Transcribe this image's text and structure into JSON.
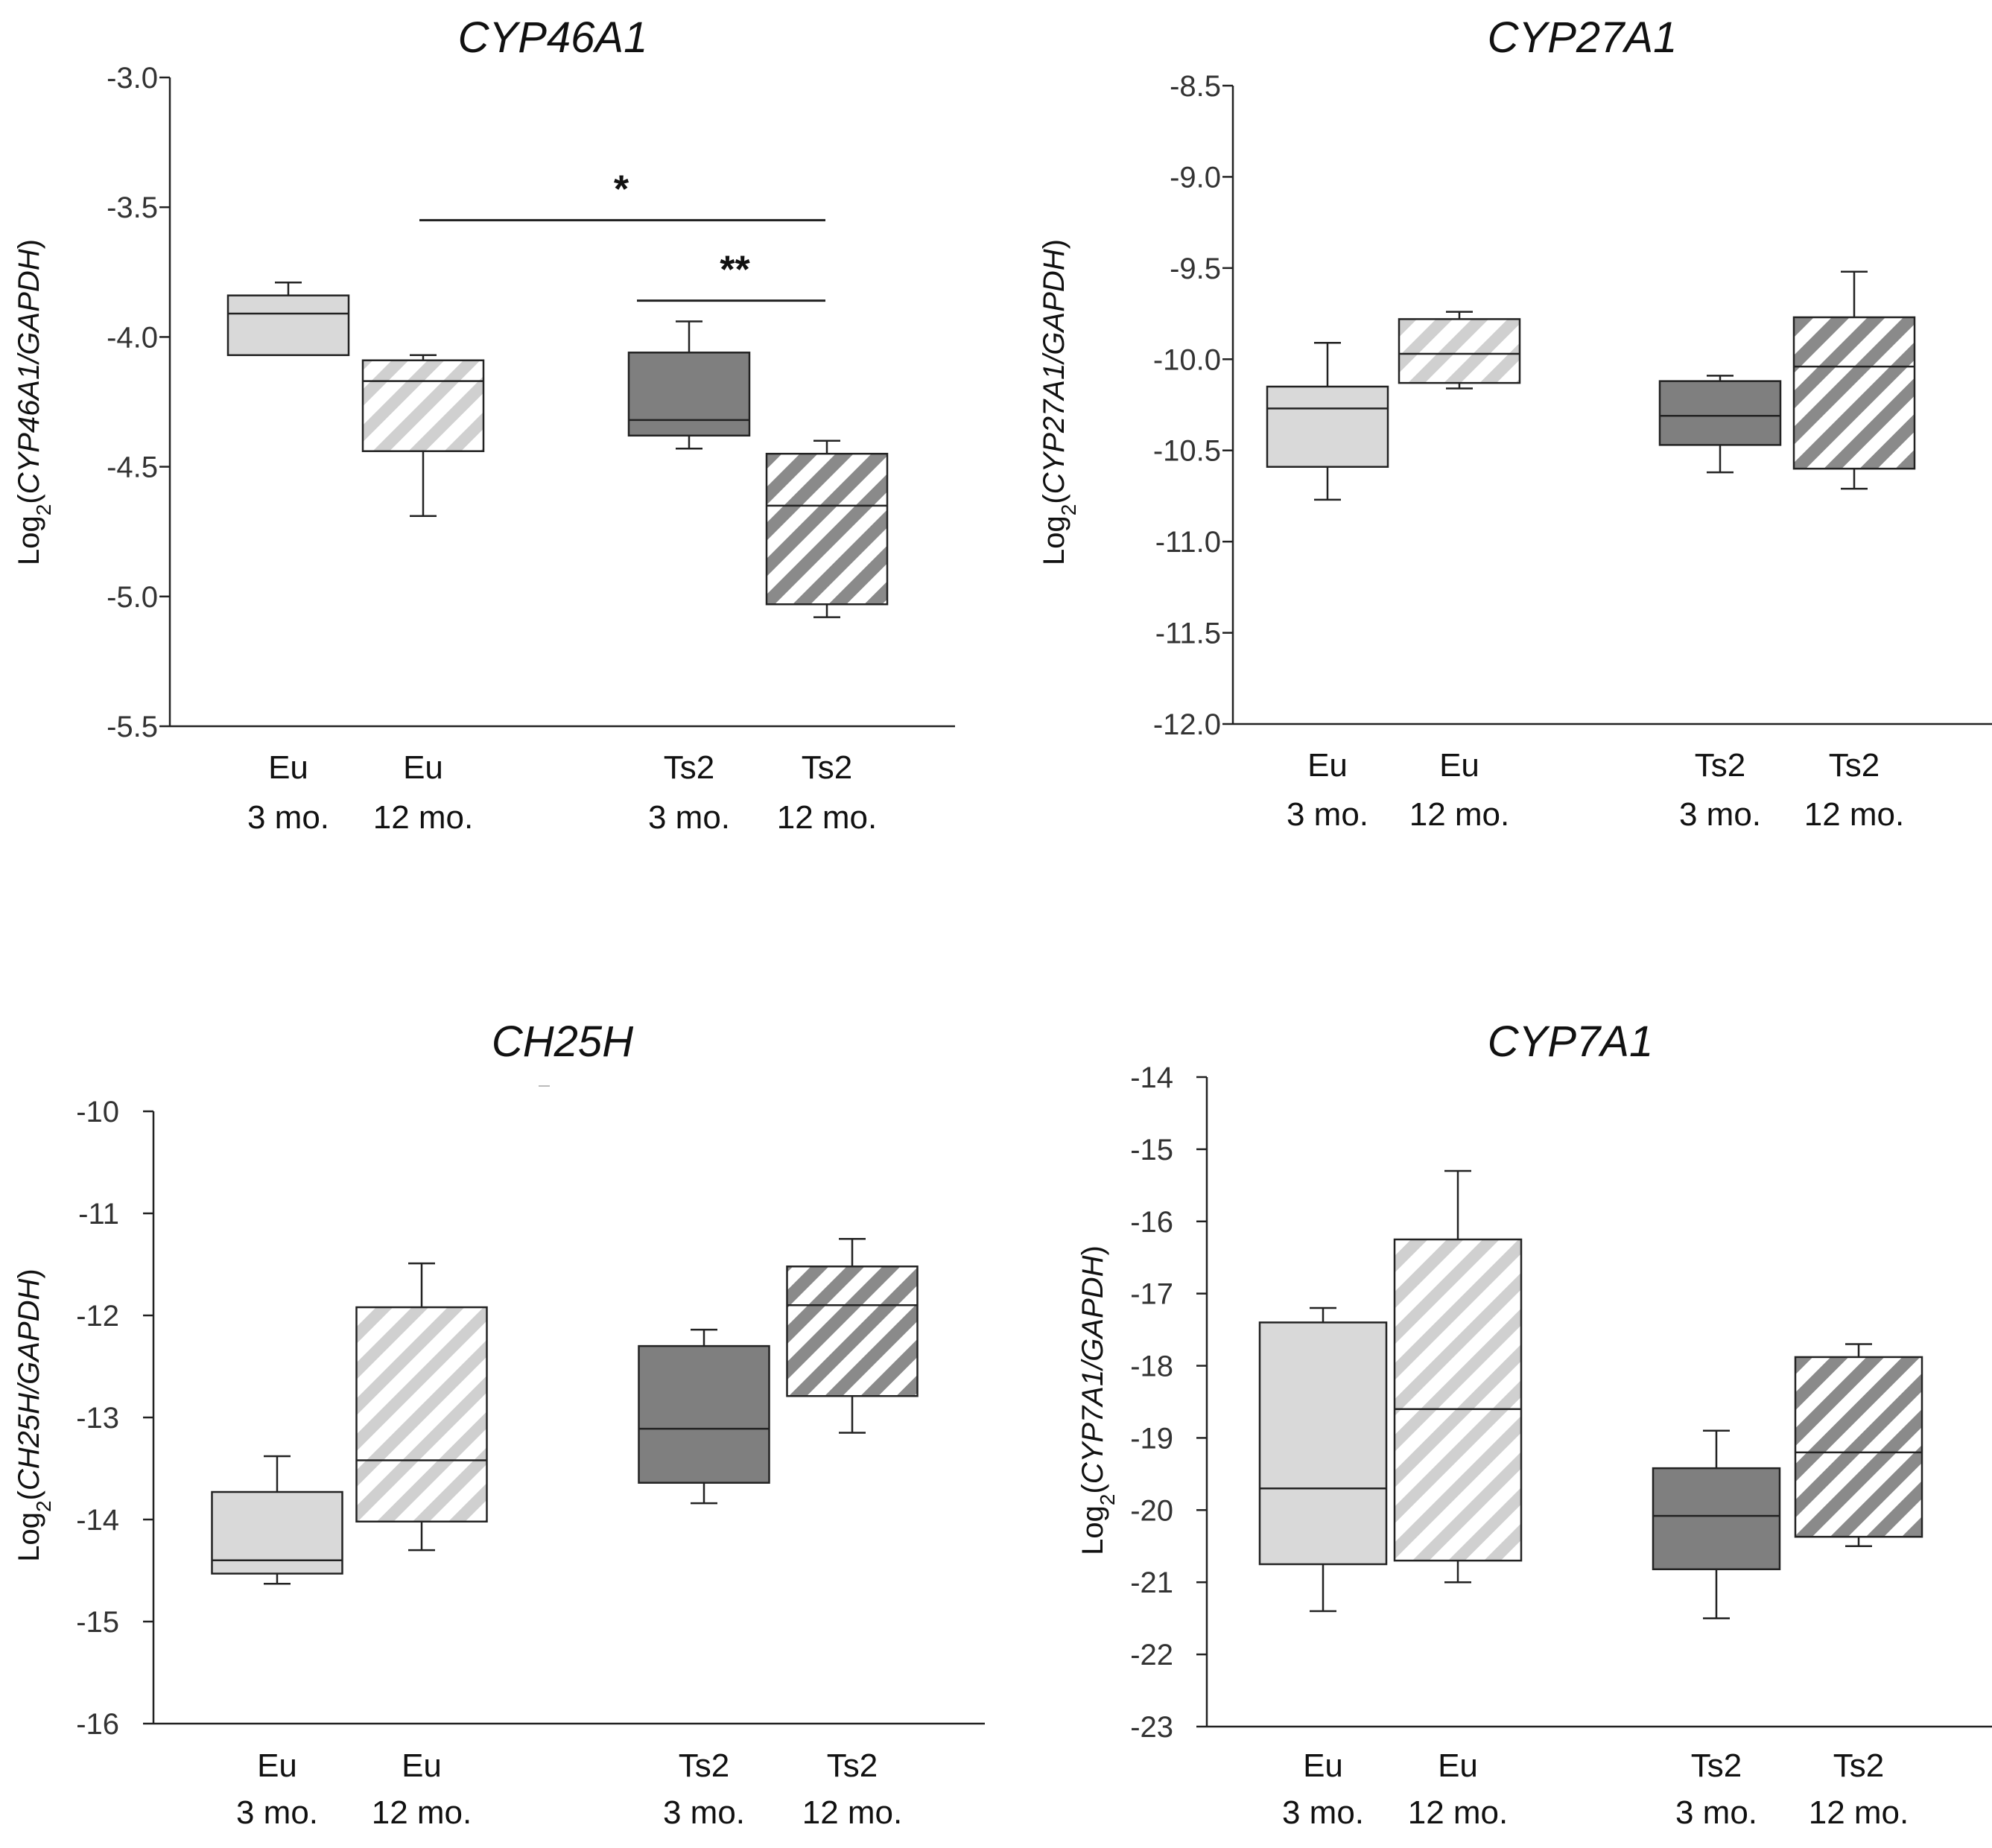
{
  "colors": {
    "eu_3mo": "#d9d9d9",
    "eu_12mo_hatch": "#cfcfcf",
    "ts2_3mo": "#7f7f7f",
    "ts2_12mo_hatch": "#8c8c8c",
    "stroke": "#222222"
  },
  "chart_data": [
    {
      "type": "box",
      "title": "CYP46A1",
      "ylabel": {
        "prefix": "Log",
        "sub": "2",
        "gene": "CYP46A1/GAPDH"
      },
      "ylim": [
        -5.5,
        -3.0
      ],
      "yticks": [
        "-3.0",
        "-3.5",
        "-4.0",
        "-4.5",
        "-5.0",
        "-5.5"
      ],
      "ytick_values": [
        -3.0,
        -3.5,
        -4.0,
        -4.5,
        -5.0,
        -5.5
      ],
      "categories": [
        {
          "line1": "Eu",
          "line2": "3 mo."
        },
        {
          "line1": "Eu",
          "line2": "12 mo."
        },
        {
          "line1": "Ts2",
          "line2": "3 mo."
        },
        {
          "line1": "Ts2",
          "line2": "12 mo."
        }
      ],
      "boxes": [
        {
          "group": "Eu 3 mo.",
          "whisker_low": -4.07,
          "q1": -4.07,
          "median": -3.91,
          "q3": -3.84,
          "whisker_high": -3.79
        },
        {
          "group": "Eu 12 mo.",
          "whisker_low": -4.69,
          "q1": -4.44,
          "median": -4.17,
          "q3": -4.09,
          "whisker_high": -4.07
        },
        {
          "group": "Ts2 3 mo.",
          "whisker_low": -4.43,
          "q1": -4.38,
          "median": -4.32,
          "q3": -4.06,
          "whisker_high": -3.94
        },
        {
          "group": "Ts2 12 mo.",
          "whisker_low": -5.08,
          "q1": -5.03,
          "median": -4.65,
          "q3": -4.45,
          "whisker_high": -4.4
        }
      ],
      "significance": [
        {
          "from": 1,
          "to": 3,
          "y": -3.55,
          "label": "*"
        },
        {
          "from": 2,
          "to": 3,
          "y": -3.86,
          "label": "**"
        }
      ]
    },
    {
      "type": "box",
      "title": "CYP27A1",
      "ylabel": {
        "prefix": "Log",
        "sub": "2",
        "gene": "CYP27A1/GAPDH"
      },
      "ylim": [
        -12.0,
        -8.5
      ],
      "yticks": [
        "-8.5",
        "-9.0",
        "-9.5",
        "-10.0",
        "-10.5",
        "-11.0",
        "-11.5",
        "-12.0"
      ],
      "ytick_values": [
        -8.5,
        -9.0,
        -9.5,
        -10.0,
        -10.5,
        -11.0,
        -11.5,
        -12.0
      ],
      "categories": [
        {
          "line1": "Eu",
          "line2": "3 mo."
        },
        {
          "line1": "Eu",
          "line2": "12 mo."
        },
        {
          "line1": "Ts2",
          "line2": "3 mo."
        },
        {
          "line1": "Ts2",
          "line2": "12 mo."
        }
      ],
      "boxes": [
        {
          "group": "Eu 3 mo.",
          "whisker_low": -10.77,
          "q1": -10.59,
          "median": -10.27,
          "q3": -10.15,
          "whisker_high": -9.91
        },
        {
          "group": "Eu 12 mo.",
          "whisker_low": -10.16,
          "q1": -10.13,
          "median": -9.97,
          "q3": -9.78,
          "whisker_high": -9.74
        },
        {
          "group": "Ts2 3 mo.",
          "whisker_low": -10.62,
          "q1": -10.47,
          "median": -10.31,
          "q3": -10.12,
          "whisker_high": -10.09
        },
        {
          "group": "Ts2 12 mo.",
          "whisker_low": -10.71,
          "q1": -10.6,
          "median": -10.04,
          "q3": -9.77,
          "whisker_high": -9.52
        }
      ],
      "significance": []
    },
    {
      "type": "box",
      "title": "CH25H",
      "ylabel": {
        "prefix": "Log",
        "sub": "2",
        "gene": "CH25H/GAPDH"
      },
      "ylim": [
        -16,
        -10
      ],
      "yticks": [
        "-10",
        "-11",
        "-12",
        "-13",
        "-14",
        "-15",
        "-16"
      ],
      "ytick_values": [
        -10,
        -11,
        -12,
        -13,
        -14,
        -15,
        -16
      ],
      "categories": [
        {
          "line1": "Eu",
          "line2": "3 mo."
        },
        {
          "line1": "Eu",
          "line2": "12 mo."
        },
        {
          "line1": "Ts2",
          "line2": "3 mo."
        },
        {
          "line1": "Ts2",
          "line2": "12 mo."
        }
      ],
      "boxes": [
        {
          "group": "Eu 3 mo.",
          "whisker_low": -14.63,
          "q1": -14.53,
          "median": -14.4,
          "q3": -13.73,
          "whisker_high": -13.38
        },
        {
          "group": "Eu 12 mo.",
          "whisker_low": -14.3,
          "q1": -14.02,
          "median": -13.42,
          "q3": -11.92,
          "whisker_high": -11.49
        },
        {
          "group": "Ts2 3 mo.",
          "whisker_low": -13.84,
          "q1": -13.64,
          "median": -13.11,
          "q3": -12.3,
          "whisker_high": -12.14
        },
        {
          "group": "Ts2 12 mo.",
          "whisker_low": -13.15,
          "q1": -12.79,
          "median": -11.9,
          "q3": -11.52,
          "whisker_high": -11.25
        }
      ],
      "significance": []
    },
    {
      "type": "box",
      "title": "CYP7A1",
      "ylabel": {
        "prefix": "Log",
        "sub": "2",
        "gene": "CYP7A1/GAPDH"
      },
      "ylim": [
        -23,
        -14
      ],
      "yticks": [
        "-14",
        "-15",
        "-16",
        "-17",
        "-18",
        "-19",
        "-20",
        "-21",
        "-22",
        "-23"
      ],
      "ytick_values": [
        -14,
        -15,
        -16,
        -17,
        -18,
        -19,
        -20,
        -21,
        -22,
        -23
      ],
      "categories": [
        {
          "line1": "Eu",
          "line2": "3 mo."
        },
        {
          "line1": "Eu",
          "line2": "12 mo."
        },
        {
          "line1": "Ts2",
          "line2": "3 mo."
        },
        {
          "line1": "Ts2",
          "line2": "12 mo."
        }
      ],
      "boxes": [
        {
          "group": "Eu 3 mo.",
          "whisker_low": -21.4,
          "q1": -20.75,
          "median": -19.7,
          "q3": -17.4,
          "whisker_high": -17.2
        },
        {
          "group": "Eu 12 mo.",
          "whisker_low": -21.0,
          "q1": -20.7,
          "median": -18.6,
          "q3": -16.25,
          "whisker_high": -15.3
        },
        {
          "group": "Ts2 3 mo.",
          "whisker_low": -21.5,
          "q1": -20.82,
          "median": -20.08,
          "q3": -19.42,
          "whisker_high": -18.9
        },
        {
          "group": "Ts2 12 mo.",
          "whisker_low": -20.5,
          "q1": -20.37,
          "median": -19.2,
          "q3": -17.88,
          "whisker_high": -17.7
        }
      ],
      "significance": []
    }
  ]
}
